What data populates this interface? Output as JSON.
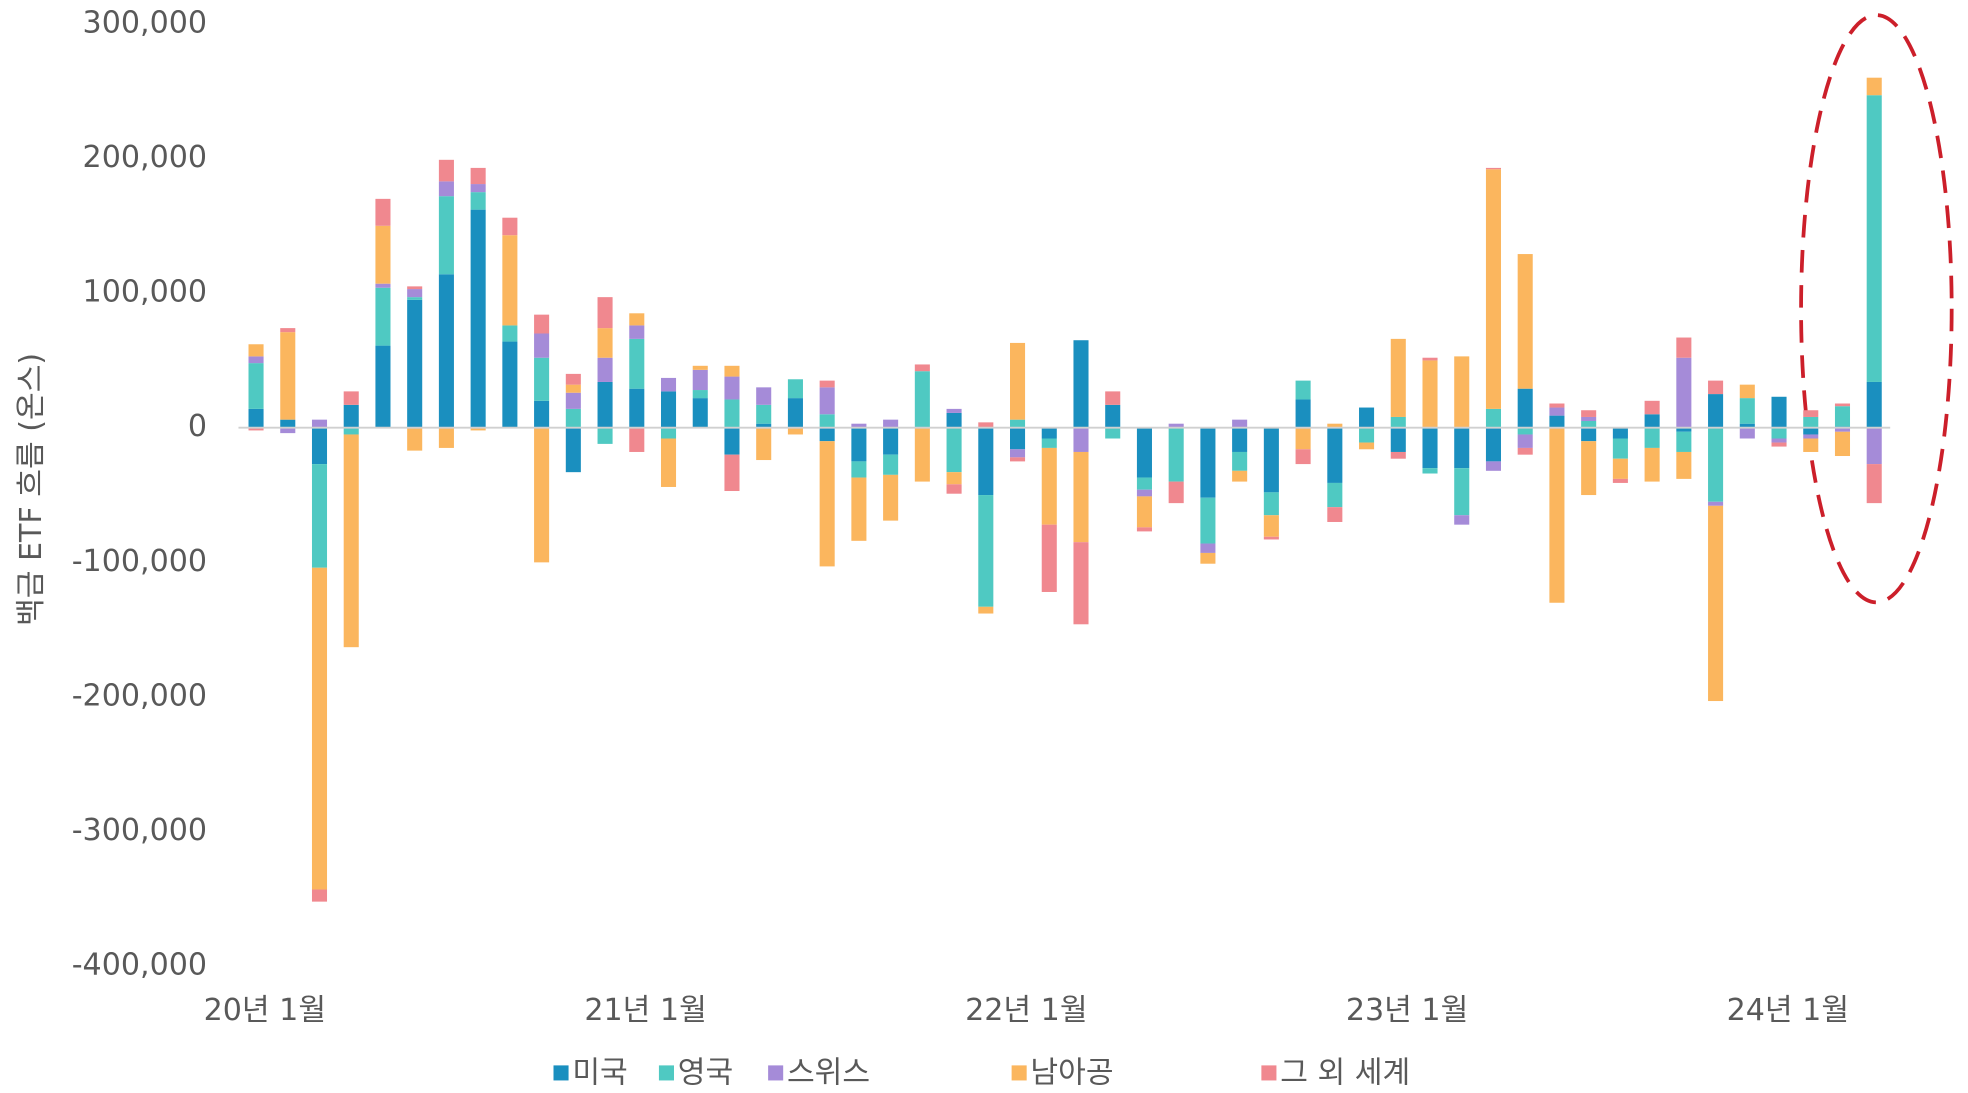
{
  "chart_data": {
    "type": "stacked-bar",
    "y_label": "백금 ETF 흐름 (온스)",
    "categories": [
      "20년 1월",
      null,
      null,
      null,
      null,
      null,
      null,
      null,
      null,
      null,
      null,
      null,
      "21년 1월",
      null,
      null,
      null,
      null,
      null,
      null,
      null,
      null,
      null,
      null,
      null,
      "22년 1월",
      null,
      null,
      null,
      null,
      null,
      null,
      null,
      null,
      null,
      null,
      null,
      "23년 1월",
      null,
      null,
      null,
      null,
      null,
      null,
      null,
      null,
      null,
      null,
      null,
      "24년 1월",
      null,
      null,
      null
    ],
    "ylim": [
      -400000,
      300000
    ],
    "yticks": [
      {
        "value": -400000,
        "label": "-400,000"
      },
      {
        "value": -300000,
        "label": "-300,000"
      },
      {
        "value": -200000,
        "label": "-200,000"
      },
      {
        "value": -100000,
        "label": "-100,000"
      },
      0,
      {
        "value": 100000,
        "label": "100,000"
      },
      {
        "value": 200000,
        "label": "200,000"
      },
      {
        "value": 300000,
        "label": "300,000"
      }
    ],
    "series": [
      {
        "name": "미국",
        "color": "#1a8fbf",
        "values": [
          14000,
          6000,
          -27000,
          17000,
          61000,
          95000,
          114000,
          162000,
          64000,
          20000,
          -33000,
          34000,
          29000,
          27000,
          22000,
          -20000,
          3000,
          22000,
          -10000,
          -25000,
          -20000,
          0,
          11000,
          -50000,
          -16000,
          -8000,
          65000,
          17000,
          -37000,
          0,
          -52000,
          -18000,
          -48000,
          21000,
          -41000,
          15000,
          -18000,
          -30000,
          -30000,
          -25000,
          29000,
          9000,
          -10000,
          -8000,
          10000,
          -3000,
          25000,
          3000,
          23000,
          -5000,
          1000,
          34000
        ]
      },
      {
        "name": "영국",
        "color": "#4fc9c2",
        "values": [
          34000,
          0,
          -77000,
          -5000,
          43000,
          2000,
          58000,
          13000,
          12000,
          32000,
          14000,
          -12000,
          37000,
          -8000,
          6000,
          21000,
          14000,
          14000,
          10000,
          -12000,
          -15000,
          42000,
          -33000,
          -83000,
          6000,
          -7000,
          0,
          -8000,
          -9000,
          -40000,
          -34000,
          -14000,
          -17000,
          14000,
          -18000,
          -11000,
          8000,
          -4000,
          -35000,
          14000,
          -5000,
          0,
          5000,
          -15000,
          -15000,
          -15000,
          -55000,
          19000,
          -8000,
          8000,
          15000,
          213000
        ]
      },
      {
        "name": "스위스",
        "color": "#a58bd8",
        "values": [
          5000,
          -4000,
          6000,
          0,
          3000,
          6000,
          11000,
          6000,
          0,
          18000,
          12000,
          18000,
          10000,
          10000,
          15000,
          17000,
          13000,
          0,
          20000,
          3000,
          6000,
          0,
          3000,
          0,
          -6000,
          0,
          -18000,
          0,
          -5000,
          3000,
          -7000,
          6000,
          0,
          0,
          0,
          0,
          0,
          0,
          -7000,
          -7000,
          -10000,
          6000,
          3000,
          0,
          0,
          52000,
          -3000,
          -8000,
          -3000,
          -3000,
          -3000,
          -27000
        ]
      },
      {
        "name": "남아공",
        "color": "#fbb65e",
        "values": [
          9000,
          65000,
          -239000,
          -158000,
          43000,
          -17000,
          -15000,
          -2000,
          67000,
          -100000,
          6000,
          22000,
          9000,
          -36000,
          3000,
          8000,
          -24000,
          -5000,
          -93000,
          -47000,
          -34000,
          -40000,
          -9000,
          -5000,
          57000,
          -57000,
          -67000,
          0,
          -23000,
          0,
          -8000,
          -8000,
          -16000,
          -16000,
          3000,
          -5000,
          58000,
          50000,
          53000,
          178000,
          100000,
          -130000,
          -40000,
          -15000,
          -25000,
          -20000,
          -145000,
          10000,
          0,
          -10000,
          -18000,
          13000
        ]
      },
      {
        "name": "그 외 세계",
        "color": "#f0888f",
        "values": [
          -2000,
          3000,
          -9000,
          10000,
          20000,
          2000,
          16000,
          12000,
          13000,
          14000,
          8000,
          23000,
          -18000,
          0,
          0,
          -27000,
          0,
          0,
          5000,
          0,
          0,
          5000,
          -7000,
          4000,
          -3000,
          -50000,
          -61000,
          10000,
          -3000,
          -16000,
          0,
          0,
          -2000,
          -11000,
          -11000,
          0,
          -5000,
          2000,
          0,
          1000,
          -5000,
          3000,
          5000,
          -3000,
          10000,
          15000,
          10000,
          0,
          -3000,
          5000,
          2000,
          -29000
        ]
      }
    ]
  }
}
